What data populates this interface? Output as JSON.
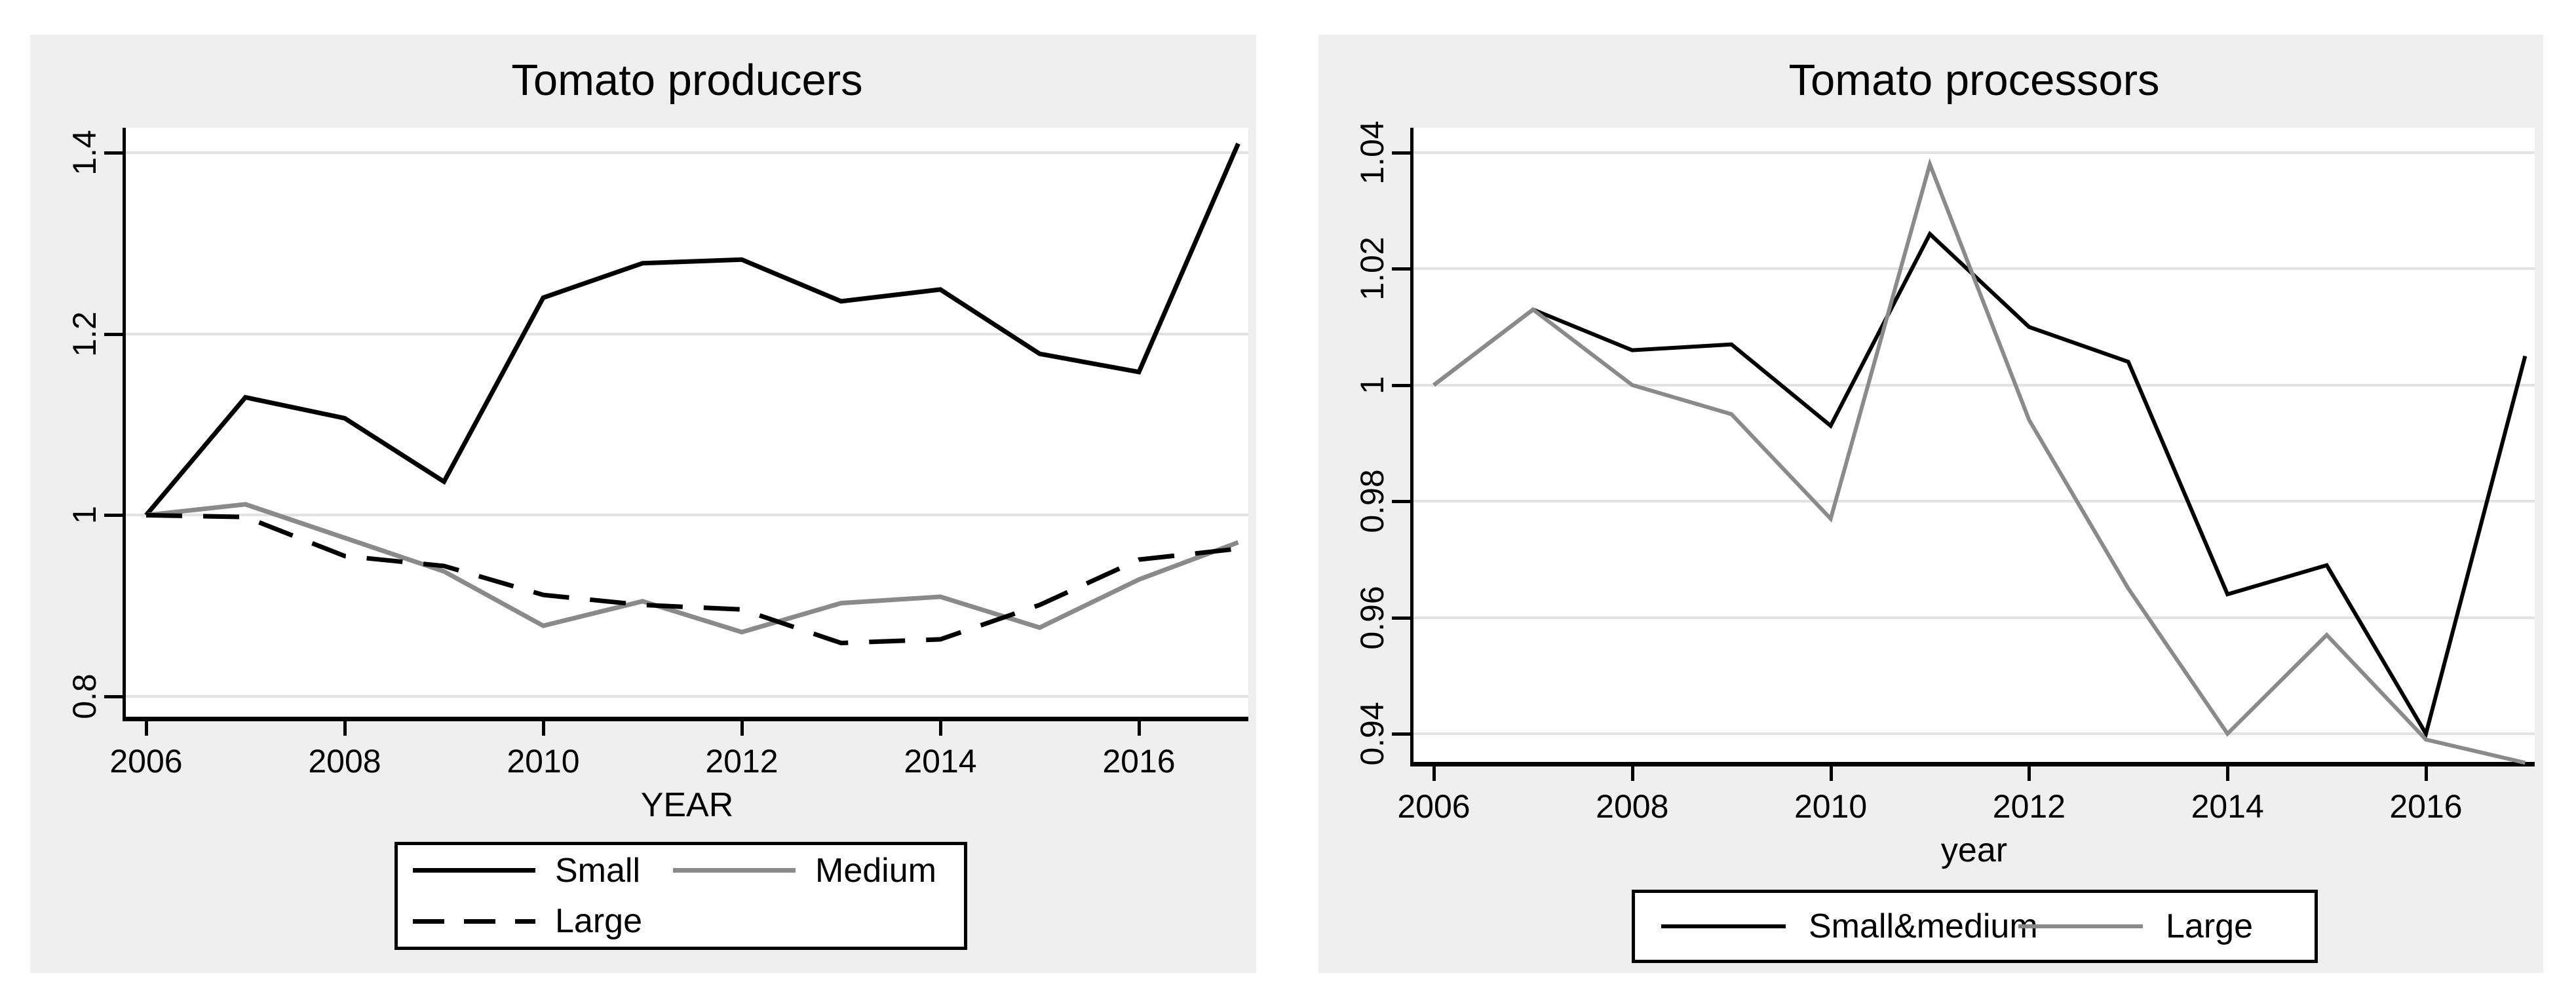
{
  "colors": {
    "panel_bg": "#efefef",
    "plot_bg": "#ffffff",
    "grid": "#e2e2e2",
    "axis": "#000000",
    "black_series": "#000000",
    "gray_series": "#8a8a8a"
  },
  "chart_data": [
    {
      "type": "line",
      "title": "Tomato producers",
      "xlabel": "YEAR",
      "ylabel": "",
      "grid": true,
      "legend_position": "bottom",
      "x": [
        2006,
        2007,
        2008,
        2009,
        2010,
        2011,
        2012,
        2013,
        2014,
        2015,
        2016,
        2017
      ],
      "xlim": [
        2006,
        2017.1
      ],
      "ylim": [
        0.778,
        1.428
      ],
      "xticks": {
        "values": [
          2006,
          2008,
          2010,
          2012,
          2014,
          2016
        ],
        "labels": [
          "2006",
          "2008",
          "2010",
          "2012",
          "2014",
          "2016"
        ]
      },
      "yticks": {
        "values": [
          0.8,
          1,
          1.2,
          1.4
        ],
        "labels": [
          "0.8",
          "1",
          "1.2",
          "1.4"
        ]
      },
      "series": [
        {
          "name": "Small",
          "color": "#000000",
          "style": "solid",
          "values": [
            1.0,
            1.13,
            1.107,
            1.037,
            1.24,
            1.278,
            1.282,
            1.236,
            1.249,
            1.178,
            1.158,
            1.41
          ]
        },
        {
          "name": "Medium",
          "color": "#8a8a8a",
          "style": "solid",
          "values": [
            1.0,
            1.012,
            0.975,
            0.938,
            0.878,
            0.905,
            0.871,
            0.903,
            0.91,
            0.876,
            0.929,
            0.97
          ]
        },
        {
          "name": "Large",
          "color": "#000000",
          "style": "dashed",
          "values": [
            1.0,
            0.998,
            0.955,
            0.944,
            0.912,
            0.901,
            0.896,
            0.859,
            0.863,
            0.901,
            0.951,
            0.963
          ]
        }
      ],
      "legend_rows": [
        [
          "Small",
          "Medium"
        ],
        [
          "Large"
        ]
      ]
    },
    {
      "type": "line",
      "title": "Tomato processors",
      "xlabel": "year",
      "ylabel": "",
      "grid": true,
      "legend_position": "bottom",
      "x": [
        2006,
        2007,
        2008,
        2009,
        2010,
        2011,
        2012,
        2013,
        2014,
        2015,
        2016,
        2017
      ],
      "xlim": [
        2006,
        2017.1
      ],
      "ylim": [
        0.935,
        1.044
      ],
      "xticks": {
        "values": [
          2006,
          2008,
          2010,
          2012,
          2014,
          2016
        ],
        "labels": [
          "2006",
          "2008",
          "2010",
          "2012",
          "2014",
          "2016"
        ]
      },
      "yticks": {
        "values": [
          0.94,
          0.96,
          0.98,
          1,
          1.02,
          1.04
        ],
        "labels": [
          "0.94",
          "0.96",
          "0.98",
          "1",
          "1.02",
          "1.04"
        ]
      },
      "series": [
        {
          "name": "Small&medium",
          "color": "#000000",
          "style": "solid",
          "values": [
            1.0,
            1.013,
            1.006,
            1.007,
            0.993,
            1.026,
            1.01,
            1.004,
            0.964,
            0.969,
            0.94,
            1.005
          ]
        },
        {
          "name": "Large",
          "color": "#8a8a8a",
          "style": "solid",
          "values": [
            1.0,
            1.013,
            1.0,
            0.995,
            0.977,
            1.038,
            0.994,
            0.965,
            0.94,
            0.957,
            0.939,
            0.935
          ]
        }
      ],
      "legend_rows": [
        [
          "Small&medium",
          "Large"
        ]
      ]
    }
  ]
}
